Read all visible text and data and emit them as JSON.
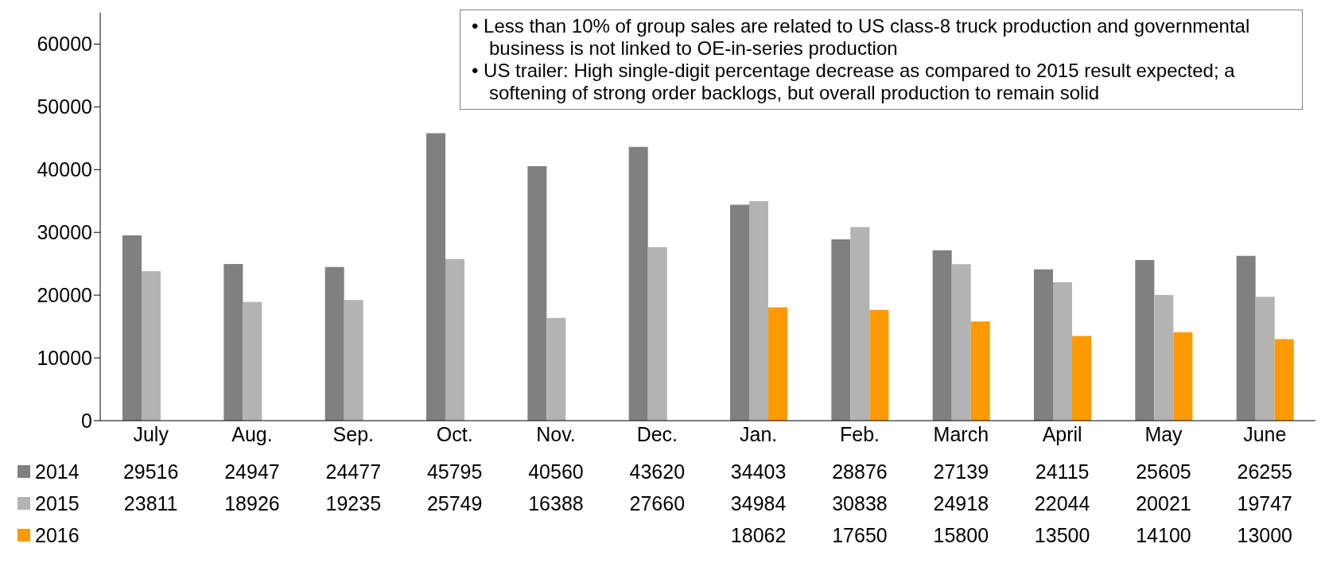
{
  "chart_data": {
    "type": "bar",
    "categories": [
      "July",
      "Aug.",
      "Sep.",
      "Oct.",
      "Nov.",
      "Dec.",
      "Jan.",
      "Feb.",
      "March",
      "April",
      "May",
      "June"
    ],
    "series": [
      {
        "name": "2014",
        "color": "#808080",
        "values": [
          29516,
          24947,
          24477,
          45795,
          40560,
          43620,
          34403,
          28876,
          27139,
          24115,
          25605,
          26255
        ]
      },
      {
        "name": "2015",
        "color": "#b3b3b3",
        "values": [
          23811,
          18926,
          19235,
          25749,
          16388,
          27660,
          34984,
          30838,
          24918,
          22044,
          20021,
          19747
        ]
      },
      {
        "name": "2016",
        "color": "#ff9900",
        "values": [
          null,
          null,
          null,
          null,
          null,
          null,
          18062,
          17650,
          15800,
          13500,
          14100,
          13000
        ]
      }
    ],
    "ylim": [
      0,
      65000
    ],
    "yticks": [
      0,
      10000,
      20000,
      30000,
      40000,
      50000,
      60000
    ],
    "grid": false,
    "legend": "bottom",
    "data_labels": true,
    "annotations": [
      "• Less than 10% of group sales are related to US class-8 truck production and governmental business is not linked to OE-in-series production",
      "• US trailer: High single-digit percentage decrease as compared to 2015 result expected; a softening of strong order backlogs, but overall production to remain solid"
    ]
  }
}
